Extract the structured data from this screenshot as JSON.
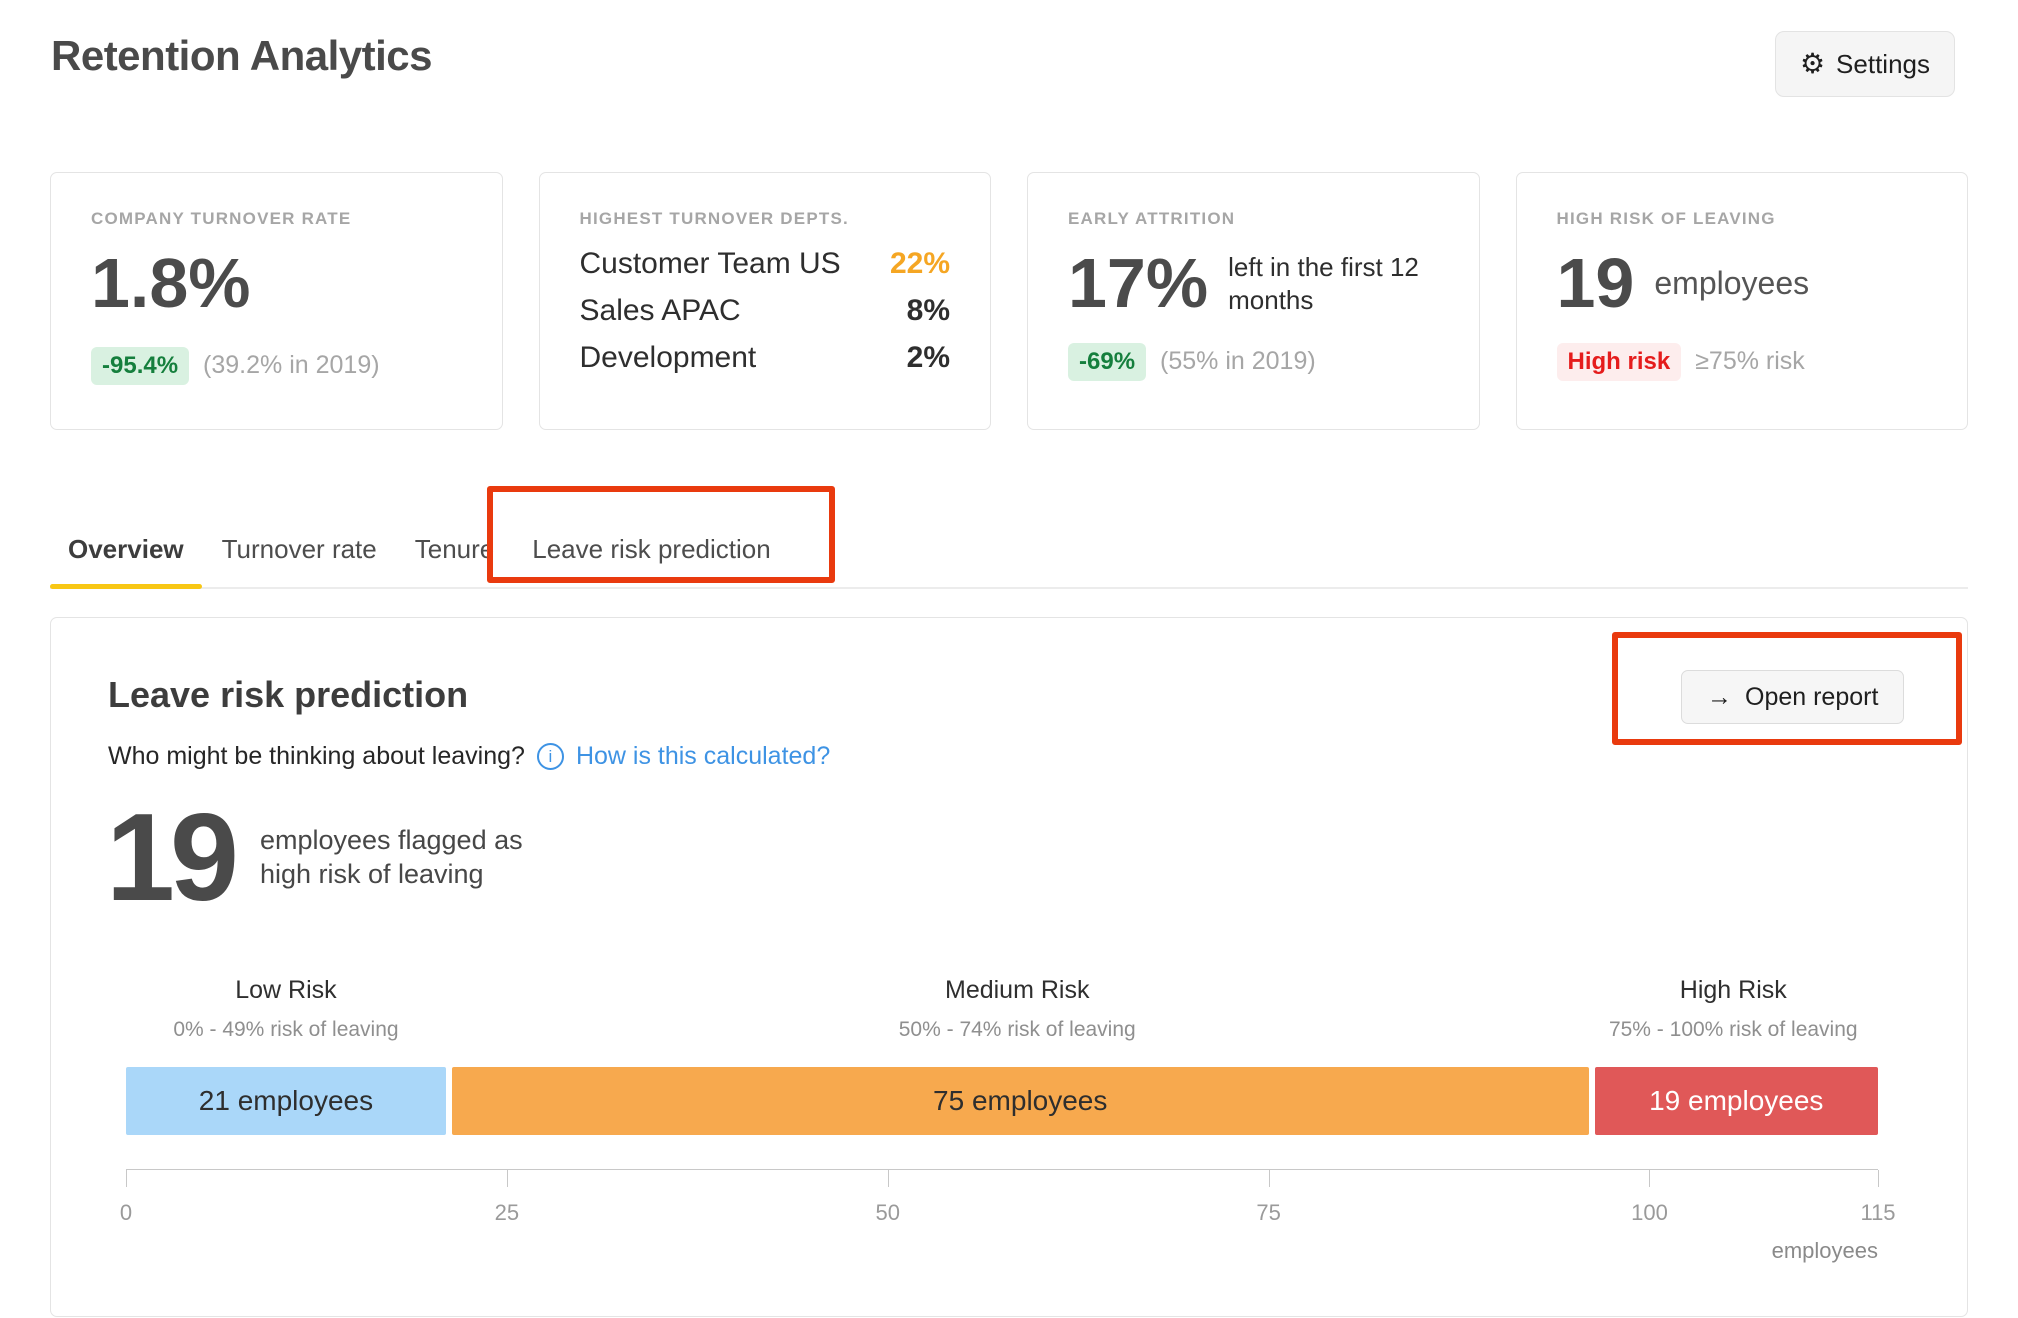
{
  "header": {
    "title": "Retention Analytics",
    "settings_label": "Settings"
  },
  "cards": {
    "turnover": {
      "label": "COMPANY TURNOVER RATE",
      "value": "1.8%",
      "delta": "-95.4%",
      "context": "(39.2% in 2019)"
    },
    "departments": {
      "label": "HIGHEST TURNOVER DEPTS.",
      "rows": [
        {
          "name": "Customer Team US",
          "value": "22%"
        },
        {
          "name": "Sales APAC",
          "value": "8%"
        },
        {
          "name": "Development",
          "value": "2%"
        }
      ]
    },
    "early_attrition": {
      "label": "EARLY ATTRITION",
      "value": "17%",
      "description": "left in the first 12 months",
      "delta": "-69%",
      "context": "(55% in 2019)"
    },
    "high_risk": {
      "label": "HIGH RISK OF LEAVING",
      "value": "19",
      "unit": "employees",
      "badge": "High risk",
      "context": "≥75% risk"
    }
  },
  "tabs": [
    {
      "label": "Overview",
      "active": true
    },
    {
      "label": "Turnover rate",
      "active": false
    },
    {
      "label": "Tenure",
      "active": false
    },
    {
      "label": "Leave risk prediction",
      "active": false
    }
  ],
  "panel": {
    "title": "Leave risk prediction",
    "question": "Who might be thinking about leaving?",
    "info_icon_glyph": "i",
    "link": "How is this calculated?",
    "open_report_label": "Open report",
    "open_report_arrow": "→",
    "headline_value": "19",
    "headline_line1": "employees flagged as",
    "headline_line2": "high risk of leaving"
  },
  "chart_data": {
    "type": "bar",
    "orientation": "horizontal-stacked",
    "title": "Leave risk prediction",
    "categories": [
      "Low Risk",
      "Medium Risk",
      "High Risk"
    ],
    "category_subtitles": [
      "0% - 49% risk of leaving",
      "50% - 74% risk of leaving",
      "75% - 100% risk of leaving"
    ],
    "values": [
      21,
      75,
      19
    ],
    "bar_labels": [
      "21 employees",
      "75 employees",
      "19 employees"
    ],
    "bar_colors": [
      "#aad7f9",
      "#f7a94e",
      "#e05858"
    ],
    "bar_text_colors": [
      "#2e2e2e",
      "#2e2e2e",
      "#ffffff"
    ],
    "axis": {
      "ticks": [
        0,
        25,
        50,
        75,
        100,
        115
      ],
      "max": 115,
      "label": "employees"
    }
  },
  "colors": {
    "accent_yellow": "#f8c714",
    "annotation_red": "#e93a0e",
    "link_blue": "#3e93e4",
    "positive_badge_bg": "#d9f1e1",
    "positive_badge_text": "#157f3d",
    "negative_badge_bg": "#fdeded",
    "negative_badge_text": "#e51c1c",
    "highlight_orange": "#f5a623"
  }
}
